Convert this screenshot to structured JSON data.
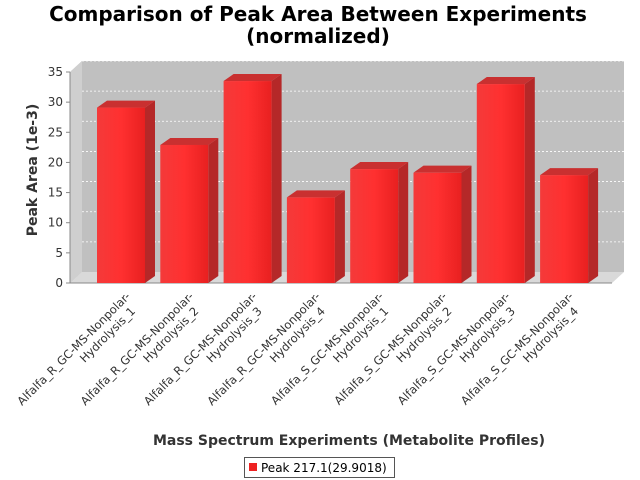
{
  "chart_data": {
    "type": "bar",
    "title_lines": [
      "Comparison of Peak Area Between Experiments",
      "(normalized)"
    ],
    "xlabel": "Mass Spectrum Experiments (Metabolite Profiles)",
    "ylabel": "Peak Area (1e-3)",
    "ylim": [
      0,
      35
    ],
    "yticks": [
      0,
      5,
      10,
      15,
      20,
      25,
      30,
      35
    ],
    "grid": true,
    "legend_position": "bottom",
    "categories": [
      [
        "Alfalfa_R_GC-MS-Nonpolar-",
        "Hydrolysis_1"
      ],
      [
        "Alfalfa_R_GC-MS-Nonpolar-",
        "Hydrolysis_2"
      ],
      [
        "Alfalfa_R_GC-MS-Nonpolar-",
        "Hydrolysis_3"
      ],
      [
        "Alfalfa_R_GC-MS-Nonpolar-",
        "Hydrolysis_4"
      ],
      [
        "Alfalfa_S_GC-MS-Nonpolar-",
        "Hydrolysis_1"
      ],
      [
        "Alfalfa_S_GC-MS-Nonpolar-",
        "Hydrolysis_2"
      ],
      [
        "Alfalfa_S_GC-MS-Nonpolar-",
        "Hydrolysis_3"
      ],
      [
        "Alfalfa_S_GC-MS-Nonpolar-",
        "Hydrolysis_4"
      ]
    ],
    "series": [
      {
        "name": "Peak 217.1(29.9018)",
        "color": "#ee2222",
        "values": [
          29.1,
          22.9,
          33.5,
          14.2,
          18.9,
          18.3,
          33.0,
          17.9
        ]
      }
    ]
  }
}
